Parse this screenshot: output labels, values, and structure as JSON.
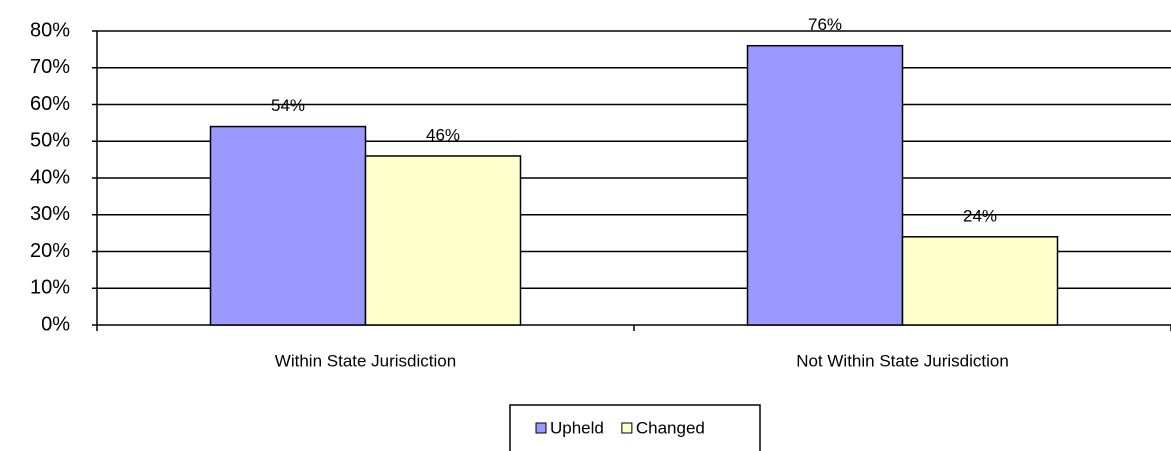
{
  "chart_data": {
    "type": "bar",
    "categories": [
      "Within State Jurisdiction",
      "Not Within State Jurisdiction"
    ],
    "series": [
      {
        "name": "Upheld",
        "color": "#9999ff",
        "values": [
          54,
          76
        ],
        "value_labels": [
          "54%",
          "76%"
        ]
      },
      {
        "name": "Changed",
        "color": "#ffffcc",
        "values": [
          46,
          24
        ],
        "value_labels": [
          "46%",
          "24%"
        ]
      }
    ],
    "ylim": [
      0,
      80
    ],
    "yticks": [
      {
        "value": 0,
        "label": "0%"
      },
      {
        "value": 10,
        "label": "10%"
      },
      {
        "value": 20,
        "label": "20%"
      },
      {
        "value": 30,
        "label": "30%"
      },
      {
        "value": 40,
        "label": "40%"
      },
      {
        "value": 50,
        "label": "50%"
      },
      {
        "value": 60,
        "label": "60%"
      },
      {
        "value": 70,
        "label": "70%"
      },
      {
        "value": 80,
        "label": "80%"
      }
    ],
    "grid": true,
    "legend": "bottom"
  }
}
